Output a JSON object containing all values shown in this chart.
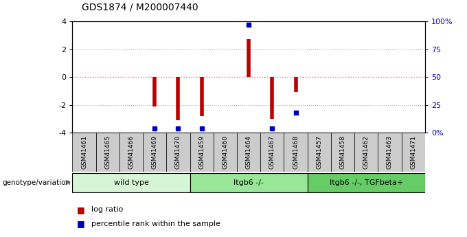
{
  "title": "GDS1874 / M200007440",
  "samples": [
    "GSM41461",
    "GSM41465",
    "GSM41466",
    "GSM41469",
    "GSM41470",
    "GSM41459",
    "GSM41460",
    "GSM41464",
    "GSM41467",
    "GSM41468",
    "GSM41457",
    "GSM41458",
    "GSM41462",
    "GSM41463",
    "GSM41471"
  ],
  "log_ratio": [
    0,
    0,
    0,
    -2.1,
    -3.1,
    -2.8,
    0,
    2.7,
    -3.0,
    -1.1,
    0,
    0,
    0,
    0,
    0
  ],
  "percentile_rank": [
    null,
    null,
    null,
    4,
    4,
    4,
    null,
    97,
    4,
    18,
    null,
    null,
    null,
    null,
    null
  ],
  "groups": [
    {
      "label": "wild type",
      "start": 0,
      "end": 5,
      "color": "#d6f5d6"
    },
    {
      "label": "Itgb6 -/-",
      "start": 5,
      "end": 10,
      "color": "#99e699"
    },
    {
      "label": "Itgb6 -/-, TGFbeta+",
      "start": 10,
      "end": 15,
      "color": "#66cc66"
    }
  ],
  "ylim": [
    -4,
    4
  ],
  "right_yticks": [
    0,
    25,
    50,
    75,
    100
  ],
  "right_yticklabels": [
    "0%",
    "25",
    "50",
    "75",
    "100%"
  ],
  "bar_color": "#bb0000",
  "dot_color": "#0000bb",
  "zero_line_color": "#ff6666",
  "grid_color": "#aaaaaa",
  "bg_color": "#ffffff",
  "tick_cell_color": "#cccccc",
  "legend_items": [
    {
      "label": "log ratio",
      "color": "#bb0000"
    },
    {
      "label": "percentile rank within the sample",
      "color": "#0000bb"
    }
  ]
}
